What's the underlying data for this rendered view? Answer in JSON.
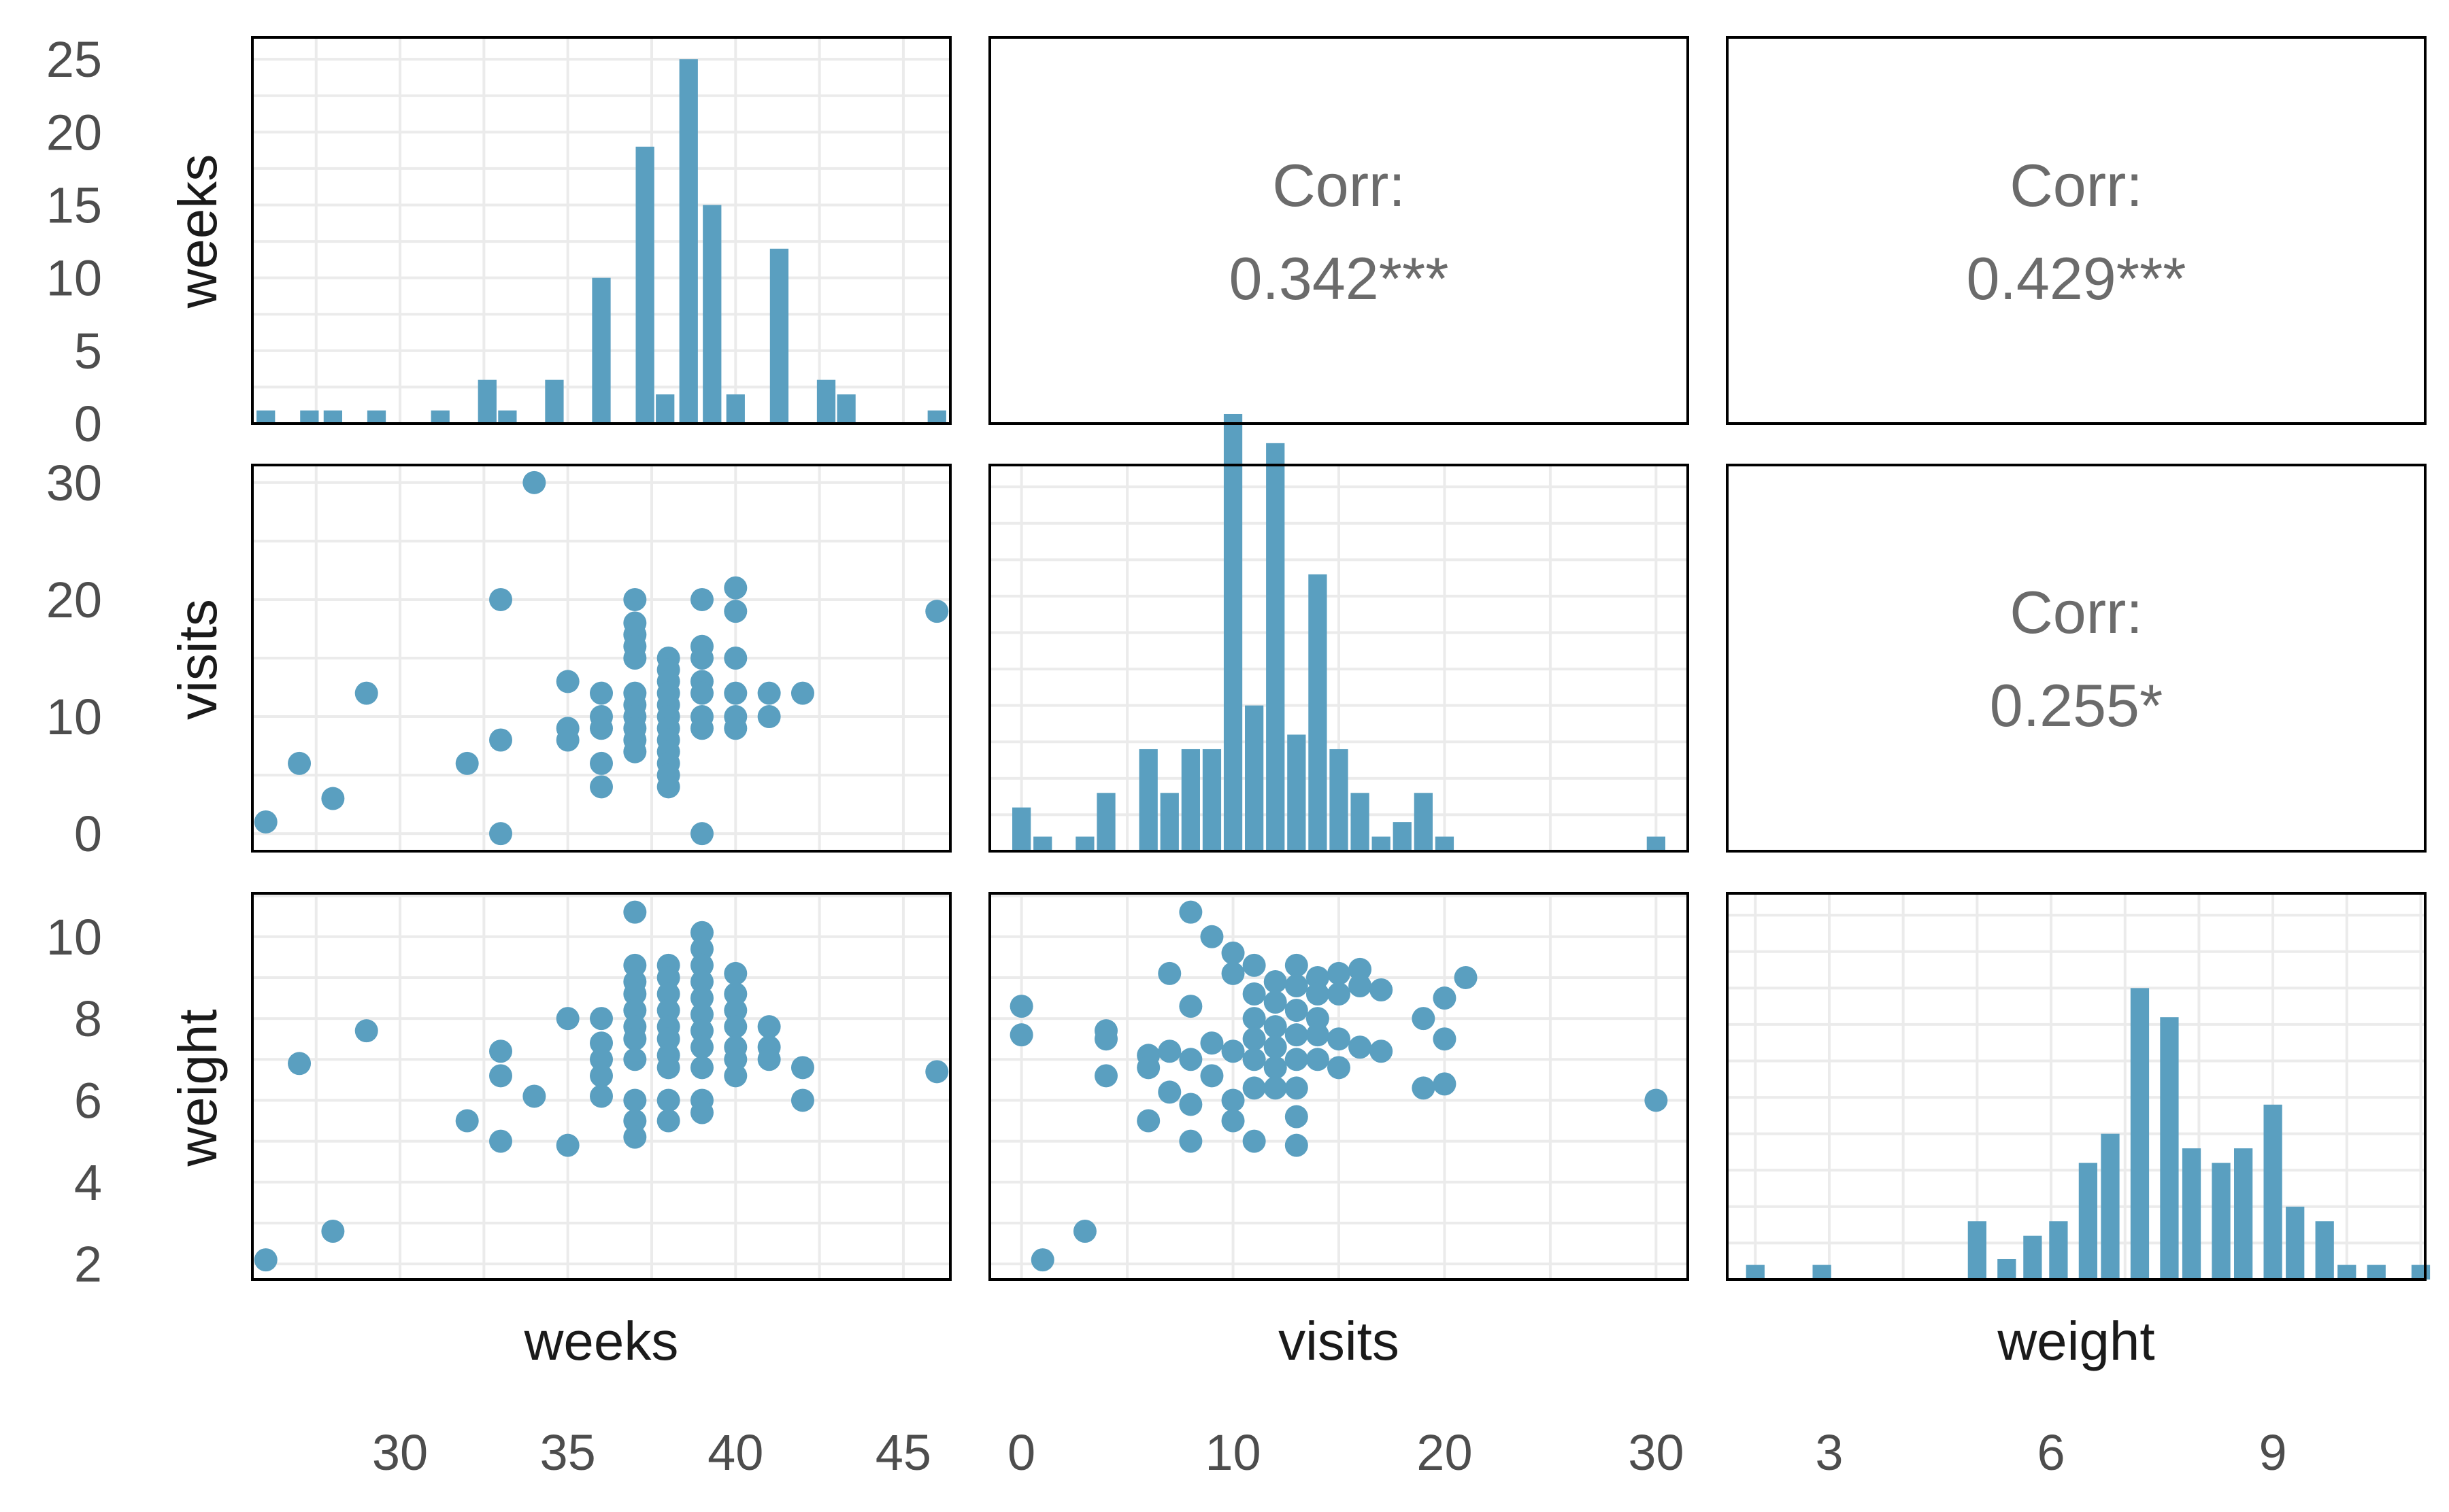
{
  "chart_data": {
    "type": "scatter",
    "variables": [
      "weeks",
      "visits",
      "weight"
    ],
    "colors": {
      "points": "#5a9fc0",
      "bars": "#5a9fc0",
      "corr_text": "#6b6b6b",
      "grid": "#ebebeb"
    },
    "axes": {
      "weeks": {
        "range": [
          25.6,
          46.4
        ],
        "breaks": [
          30,
          35,
          40,
          45
        ],
        "tick_labels": [
          "30",
          "35",
          "40",
          "45"
        ]
      },
      "visits": {
        "range": [
          -1.5,
          31.5
        ],
        "breaks": [
          0,
          10,
          20,
          30
        ],
        "tick_labels": [
          "0",
          "10",
          "20",
          "30"
        ]
      },
      "weight": {
        "range": [
          1.62,
          11.06
        ],
        "breaks": [
          2,
          4,
          6,
          8,
          10
        ],
        "tick_labels": [
          "2",
          "4",
          "6",
          "8",
          "10"
        ]
      },
      "weight_x": {
        "range": [
          1.62,
          11.06
        ],
        "breaks": [
          3,
          6,
          9
        ],
        "tick_labels": [
          "3",
          "6",
          "9"
        ]
      }
    },
    "count_axis": {
      "range": [
        0,
        26.5
      ],
      "breaks": [
        0,
        5,
        10,
        15,
        20,
        25
      ],
      "tick_labels": [
        "0",
        "5",
        "10",
        "15",
        "20",
        "25"
      ]
    },
    "correlations": {
      "weeks_visits": {
        "label": "Corr:",
        "value": "0.342***"
      },
      "weeks_weight": {
        "label": "Corr:",
        "value": "0.429***"
      },
      "visits_weight": {
        "label": "Corr:",
        "value": "0.255*"
      }
    },
    "histograms": {
      "weeks": {
        "x": [
          26.0,
          27.3,
          28.0,
          29.3,
          31.2,
          32.6,
          33.2,
          34.6,
          36.0,
          37.3,
          37.9,
          38.6,
          39.3,
          40.0,
          41.3,
          42.7,
          43.3,
          46.0
        ],
        "counts": [
          0.9,
          0.9,
          0.9,
          0.9,
          0.9,
          3.0,
          0.9,
          3.0,
          10.0,
          19.0,
          2.0,
          25.0,
          15.0,
          2.0,
          12.0,
          3.0,
          2.0,
          0.9
        ]
      },
      "visits": {
        "x": [
          0,
          1,
          3,
          4,
          6,
          7,
          8,
          9,
          10,
          11,
          12,
          13,
          14,
          15,
          16,
          17,
          18,
          19,
          20,
          21,
          30
        ],
        "counts": [
          3,
          1,
          1,
          4,
          7,
          4,
          7,
          7,
          30,
          10,
          28,
          8,
          19,
          7,
          4,
          1,
          2,
          4,
          1,
          0,
          1
        ]
      },
      "weight": {
        "x": [
          2.0,
          2.9,
          5.0,
          5.4,
          5.75,
          6.1,
          6.5,
          6.8,
          7.2,
          7.6,
          7.9,
          8.3,
          8.6,
          9.0,
          9.3,
          9.7,
          10.0,
          10.4,
          11.0
        ],
        "counts": [
          1,
          1,
          4,
          1.4,
          3,
          4,
          8,
          10,
          20,
          18,
          9,
          8,
          9,
          12,
          5,
          4,
          1,
          1,
          1
        ]
      }
    },
    "pairs": {
      "weeks_visits": [
        [
          26,
          1
        ],
        [
          27,
          6
        ],
        [
          28,
          3
        ],
        [
          29,
          12
        ],
        [
          32,
          6
        ],
        [
          33,
          20
        ],
        [
          33,
          8
        ],
        [
          33,
          0
        ],
        [
          34,
          30
        ],
        [
          35,
          13
        ],
        [
          35,
          9
        ],
        [
          35,
          8
        ],
        [
          36,
          12
        ],
        [
          36,
          10
        ],
        [
          36,
          9
        ],
        [
          36,
          6
        ],
        [
          36,
          4
        ],
        [
          37,
          20
        ],
        [
          37,
          18
        ],
        [
          37,
          17
        ],
        [
          37,
          16
        ],
        [
          37,
          15
        ],
        [
          37,
          12
        ],
        [
          37,
          11
        ],
        [
          37,
          10
        ],
        [
          37,
          9
        ],
        [
          37,
          8
        ],
        [
          37,
          7
        ],
        [
          38,
          15
        ],
        [
          38,
          14
        ],
        [
          38,
          13
        ],
        [
          38,
          12
        ],
        [
          38,
          11
        ],
        [
          38,
          10
        ],
        [
          38,
          9
        ],
        [
          38,
          8
        ],
        [
          38,
          7
        ],
        [
          38,
          6
        ],
        [
          38,
          5
        ],
        [
          38,
          4
        ],
        [
          39,
          20
        ],
        [
          39,
          16
        ],
        [
          39,
          15
        ],
        [
          39,
          13
        ],
        [
          39,
          12
        ],
        [
          39,
          10
        ],
        [
          39,
          9
        ],
        [
          39,
          0
        ],
        [
          40,
          21
        ],
        [
          40,
          19
        ],
        [
          40,
          15
        ],
        [
          40,
          12
        ],
        [
          40,
          10
        ],
        [
          40,
          9
        ],
        [
          41,
          12
        ],
        [
          41,
          10
        ],
        [
          42,
          12
        ],
        [
          46,
          19
        ]
      ],
      "weeks_weight": [
        [
          26,
          2.1
        ],
        [
          27,
          6.9
        ],
        [
          28,
          2.8
        ],
        [
          29,
          7.7
        ],
        [
          32,
          5.5
        ],
        [
          33,
          7.2
        ],
        [
          33,
          6.6
        ],
        [
          33,
          5.0
        ],
        [
          34,
          6.1
        ],
        [
          35,
          8.0
        ],
        [
          35,
          4.9
        ],
        [
          36,
          8.0
        ],
        [
          36,
          7.4
        ],
        [
          36,
          7.0
        ],
        [
          36,
          6.6
        ],
        [
          36,
          6.1
        ],
        [
          37,
          10.6
        ],
        [
          37,
          9.3
        ],
        [
          37,
          8.9
        ],
        [
          37,
          8.6
        ],
        [
          37,
          8.2
        ],
        [
          37,
          7.8
        ],
        [
          37,
          7.5
        ],
        [
          37,
          7.0
        ],
        [
          37,
          6.0
        ],
        [
          37,
          5.5
        ],
        [
          37,
          5.1
        ],
        [
          38,
          9.3
        ],
        [
          38,
          9.0
        ],
        [
          38,
          8.6
        ],
        [
          38,
          8.2
        ],
        [
          38,
          7.8
        ],
        [
          38,
          7.5
        ],
        [
          38,
          7.1
        ],
        [
          38,
          6.8
        ],
        [
          38,
          6.0
        ],
        [
          38,
          5.5
        ],
        [
          39,
          10.1
        ],
        [
          39,
          9.7
        ],
        [
          39,
          9.3
        ],
        [
          39,
          8.9
        ],
        [
          39,
          8.5
        ],
        [
          39,
          8.1
        ],
        [
          39,
          7.7
        ],
        [
          39,
          7.3
        ],
        [
          39,
          6.8
        ],
        [
          39,
          6.0
        ],
        [
          39,
          5.7
        ],
        [
          40,
          9.1
        ],
        [
          40,
          8.6
        ],
        [
          40,
          8.2
        ],
        [
          40,
          7.8
        ],
        [
          40,
          7.3
        ],
        [
          40,
          7.0
        ],
        [
          40,
          6.6
        ],
        [
          41,
          7.8
        ],
        [
          41,
          7.3
        ],
        [
          41,
          7.0
        ],
        [
          42,
          6.8
        ],
        [
          42,
          6.0
        ],
        [
          46,
          6.7
        ]
      ],
      "visits_weight": [
        [
          0,
          8.3
        ],
        [
          0,
          7.6
        ],
        [
          1,
          2.1
        ],
        [
          3,
          2.8
        ],
        [
          4,
          7.7
        ],
        [
          4,
          7.5
        ],
        [
          4,
          6.6
        ],
        [
          6,
          7.1
        ],
        [
          6,
          6.8
        ],
        [
          6,
          5.5
        ],
        [
          7,
          9.1
        ],
        [
          7,
          7.2
        ],
        [
          7,
          6.2
        ],
        [
          8,
          10.6
        ],
        [
          8,
          8.3
        ],
        [
          8,
          7.0
        ],
        [
          8,
          5.9
        ],
        [
          8,
          5.0
        ],
        [
          9,
          10.0
        ],
        [
          9,
          7.4
        ],
        [
          9,
          6.6
        ],
        [
          10,
          9.6
        ],
        [
          10,
          9.1
        ],
        [
          10,
          7.2
        ],
        [
          10,
          6.0
        ],
        [
          10,
          5.5
        ],
        [
          11,
          9.3
        ],
        [
          11,
          8.6
        ],
        [
          11,
          8.0
        ],
        [
          11,
          7.5
        ],
        [
          11,
          7.0
        ],
        [
          11,
          6.3
        ],
        [
          11,
          5.0
        ],
        [
          12,
          8.9
        ],
        [
          12,
          8.4
        ],
        [
          12,
          7.8
        ],
        [
          12,
          7.3
        ],
        [
          12,
          6.8
        ],
        [
          12,
          6.3
        ],
        [
          13,
          9.3
        ],
        [
          13,
          8.8
        ],
        [
          13,
          8.2
        ],
        [
          13,
          7.6
        ],
        [
          13,
          7.0
        ],
        [
          13,
          6.3
        ],
        [
          13,
          5.6
        ],
        [
          13,
          4.9
        ],
        [
          14,
          9.0
        ],
        [
          14,
          8.6
        ],
        [
          14,
          8.0
        ],
        [
          14,
          7.6
        ],
        [
          14,
          7.0
        ],
        [
          15,
          9.1
        ],
        [
          15,
          8.6
        ],
        [
          15,
          7.5
        ],
        [
          15,
          6.8
        ],
        [
          16,
          9.2
        ],
        [
          16,
          8.8
        ],
        [
          16,
          7.3
        ],
        [
          17,
          8.7
        ],
        [
          17,
          7.2
        ],
        [
          19,
          8.0
        ],
        [
          19,
          6.3
        ],
        [
          20,
          8.5
        ],
        [
          20,
          7.5
        ],
        [
          20,
          6.4
        ],
        [
          21,
          9.0
        ],
        [
          30,
          6.0
        ]
      ]
    }
  }
}
